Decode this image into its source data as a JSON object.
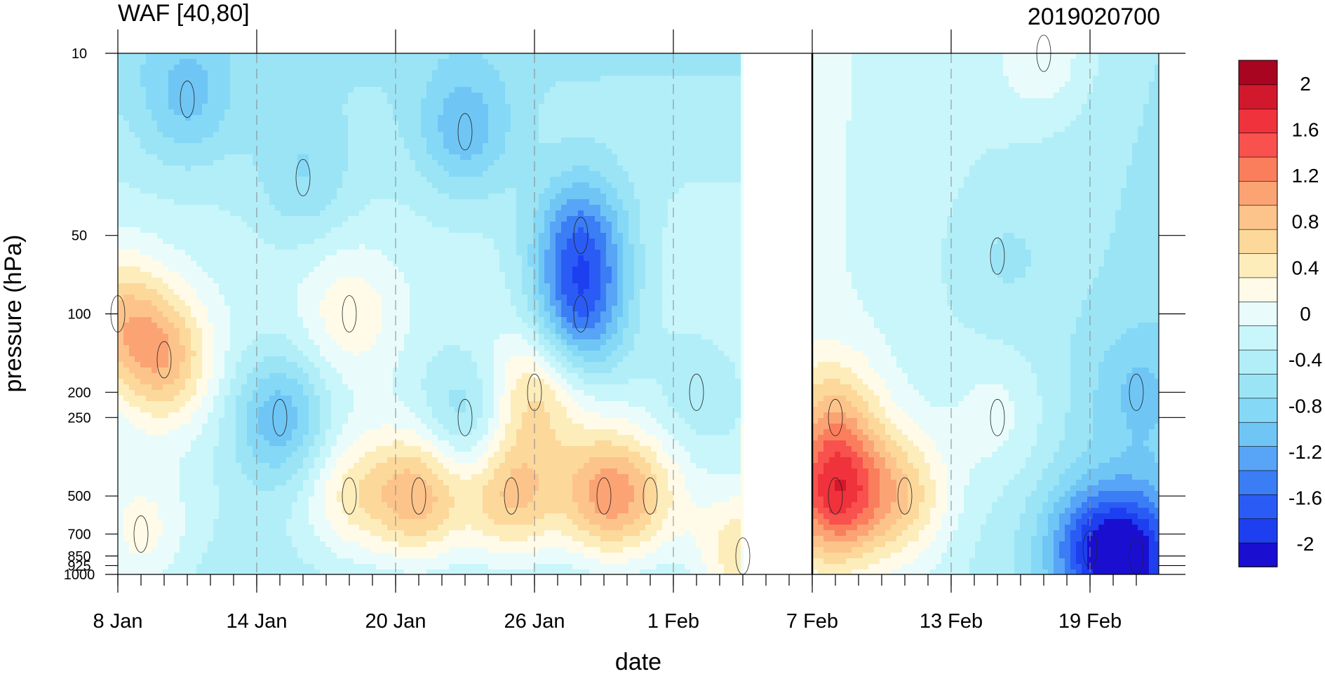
{
  "chart_data": {
    "type": "heatmap",
    "title": "WAF [40,80]",
    "right_title": "2019020700",
    "xlabel": "date",
    "ylabel": "pressure (hPa)",
    "x_tick_labels": [
      "8 Jan",
      "14 Jan",
      "20 Jan",
      "26 Jan",
      "1 Feb",
      "7 Feb",
      "13 Feb",
      "19 Feb"
    ],
    "x_range": [
      "8 Jan",
      "22 Feb"
    ],
    "analysis_end": "4 Feb",
    "forecast_start": "7 Feb",
    "y_tick_labels": [
      "10",
      "50",
      "100",
      "200",
      "250",
      "500",
      "700",
      "850",
      "925",
      "1000"
    ],
    "y_tick_values": [
      10,
      50,
      100,
      200,
      250,
      500,
      700,
      850,
      925,
      1000
    ],
    "y_scale": "log",
    "y_range": [
      1000,
      10
    ],
    "colorbar": {
      "labels": [
        "2",
        "1.6",
        "1.2",
        "0.8",
        "0.4",
        "0",
        "-0.4",
        "-0.8",
        "-1.2",
        "-1.6",
        "-2"
      ],
      "label_values": [
        2,
        1.6,
        1.2,
        0.8,
        0.4,
        0,
        -0.4,
        -0.8,
        -1.2,
        -1.6,
        -2
      ],
      "levels": [
        -2,
        -1.8,
        -1.6,
        -1.4,
        -1.2,
        -1,
        -0.8,
        -0.6,
        -0.4,
        -0.2,
        0,
        0.2,
        0.4,
        0.6,
        0.8,
        1,
        1.2,
        1.4,
        1.6,
        1.8,
        2
      ],
      "colors": [
        "#1a0fd1",
        "#1d3ff0",
        "#2a5cf5",
        "#3b7df5",
        "#58a4f7",
        "#6fc6f5",
        "#85d9f6",
        "#9be4f5",
        "#b1eef8",
        "#c9f6fa",
        "#e9fcfb",
        "#fffbe8",
        "#fdedbb",
        "#fcd89b",
        "#fcc48b",
        "#fca374",
        "#fb7e5c",
        "#f8514e",
        "#ef323c",
        "#d2182c",
        "#a80520"
      ],
      "placement": "right"
    },
    "cells": [
      {
        "x": "8 Jan",
        "y": 100,
        "value": 0.6
      },
      {
        "x": "10 Jan",
        "y": 150,
        "value": 0.8
      },
      {
        "x": "9 Jan",
        "y": 700,
        "value": 0.3
      },
      {
        "x": "11 Jan",
        "y": 15,
        "value": -0.8
      },
      {
        "x": "15 Jan",
        "y": 250,
        "value": -1.0
      },
      {
        "x": "16 Jan",
        "y": 30,
        "value": -0.6
      },
      {
        "x": "18 Jan",
        "y": 100,
        "value": 0.3
      },
      {
        "x": "18 Jan",
        "y": 500,
        "value": 0.4
      },
      {
        "x": "21 Jan",
        "y": 500,
        "value": 0.9
      },
      {
        "x": "23 Jan",
        "y": 20,
        "value": -0.9
      },
      {
        "x": "23 Jan",
        "y": 250,
        "value": -0.7
      },
      {
        "x": "25 Jan",
        "y": 500,
        "value": 0.8
      },
      {
        "x": "26 Jan",
        "y": 200,
        "value": 0.6
      },
      {
        "x": "28 Jan",
        "y": 100,
        "value": -1.3
      },
      {
        "x": "28 Jan",
        "y": 50,
        "value": -1.2
      },
      {
        "x": "29 Jan",
        "y": 500,
        "value": 0.9
      },
      {
        "x": "31 Jan",
        "y": 500,
        "value": 0.3
      },
      {
        "x": "2 Feb",
        "y": 200,
        "value": -0.4
      },
      {
        "x": "4 Feb",
        "y": 850,
        "value": 0.6
      },
      {
        "x": "8 Feb",
        "y": 500,
        "value": 1.4
      },
      {
        "x": "8 Feb",
        "y": 250,
        "value": 0.6
      },
      {
        "x": "11 Feb",
        "y": 500,
        "value": 0.6
      },
      {
        "x": "15 Feb",
        "y": 250,
        "value": 0.1
      },
      {
        "x": "15 Feb",
        "y": 60,
        "value": -0.4
      },
      {
        "x": "17 Feb",
        "y": 10,
        "value": 0.2
      },
      {
        "x": "19 Feb",
        "y": 800,
        "value": -1.3
      },
      {
        "x": "21 Feb",
        "y": 850,
        "value": -1.5
      },
      {
        "x": "21 Feb",
        "y": 200,
        "value": -0.7
      }
    ]
  }
}
